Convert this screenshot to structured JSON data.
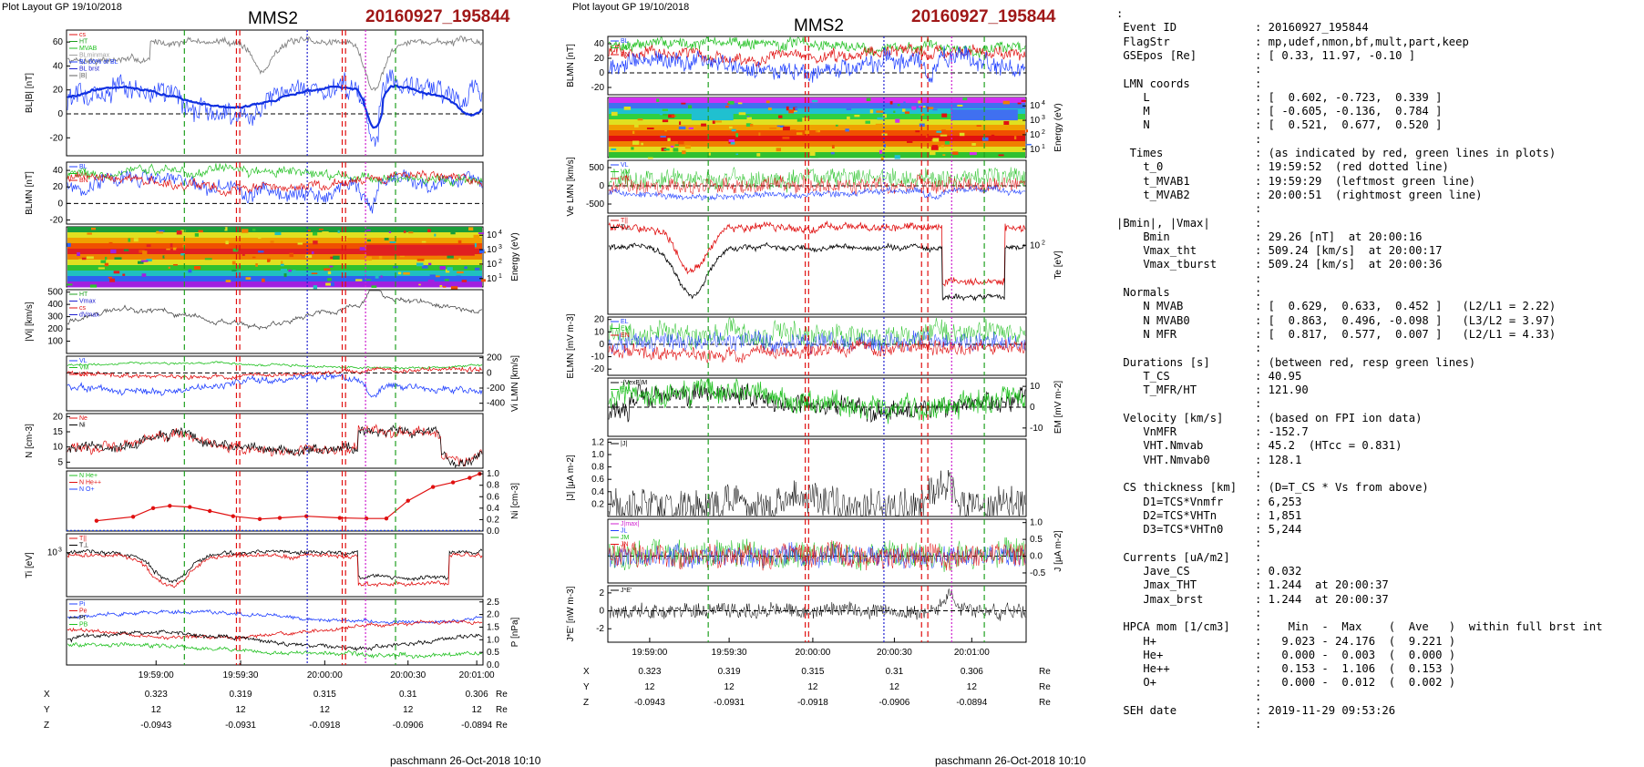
{
  "figure_left": {
    "header": "Plot Layout GP 19/10/2018",
    "spacecraft": "MMS2",
    "event": "20160927_195844",
    "footer": "paschmann 26-Oct-2018 10:10",
    "panels": [
      {
        "id": "B",
        "ylabel": "BL|B| [nT]",
        "yticks": [
          "60",
          "40",
          "20",
          "0",
          "-20"
        ],
        "yrange": [
          -35,
          70
        ],
        "legend": [
          "cs",
          "HT",
          "MVAB",
          "BLminmax",
          "BL 50% of BL",
          "BL brst",
          "|B|"
        ]
      },
      {
        "id": "BLMN",
        "ylabel": "BLMN [nT]",
        "yticks": [
          "40",
          "20",
          "0",
          "-20"
        ],
        "yrange": [
          -25,
          50
        ],
        "legend": [
          "BL",
          "BM",
          "BN"
        ]
      },
      {
        "id": "spec_ion",
        "ylabel": "Energy (eV)",
        "yticks": [
          "10^4",
          "10^3",
          "10^2",
          "10^1"
        ],
        "legend": []
      },
      {
        "id": "V",
        "ylabel": "|Vi| [km/s]",
        "yticks": [
          "500",
          "400",
          "300",
          "200",
          "100"
        ],
        "yrange": [
          0,
          520
        ],
        "legend": [
          "HT",
          "Vmax",
          "cs",
          "dVmax"
        ]
      },
      {
        "id": "VLMN",
        "ylabel": "Vi LMN [km/s]",
        "yticks": [
          "200",
          "0",
          "-200",
          "-400"
        ],
        "yrange": [
          -500,
          220
        ],
        "legend": [
          "VL",
          "VM",
          "VN"
        ]
      },
      {
        "id": "N",
        "ylabel": "N [cm-3]",
        "yticks": [
          "20",
          "15",
          "10",
          "5"
        ],
        "yrange": [
          3,
          21
        ],
        "legend": [
          "Ne",
          "Ni"
        ]
      },
      {
        "id": "HPCA",
        "ylabel": "Ni [cm-3]",
        "yticks": [
          "1.0",
          "0.8",
          "0.6",
          "0.4",
          "0.2",
          "0.0"
        ],
        "yrange": [
          0,
          1.05
        ],
        "legend": [
          "N He+",
          "N He++",
          "N O+"
        ]
      },
      {
        "id": "T",
        "ylabel": "Ti [eV]",
        "yticks": [
          "10^3"
        ],
        "legend": [
          "T||",
          "T⊥"
        ]
      },
      {
        "id": "P",
        "ylabel": "P [nPa]",
        "yticks": [
          "2.5",
          "2.0",
          "1.5",
          "1.0",
          "0.5",
          "0.0"
        ],
        "yrange": [
          0,
          2.6
        ],
        "legend": [
          "Pi",
          "Pe",
          "Pt",
          "PB"
        ]
      }
    ],
    "time_ticks": [
      "19:59:00",
      "19:59:30",
      "20:00:00",
      "20:00:30",
      "20:01:00"
    ],
    "eph": {
      "rows": [
        "X",
        "Y",
        "Z"
      ],
      "values": [
        [
          "0.323",
          "0.319",
          "0.315",
          "0.31",
          "0.306"
        ],
        [
          "12",
          "12",
          "12",
          "12",
          "12"
        ],
        [
          "-0.0943",
          "-0.0931",
          "-0.0918",
          "-0.0906",
          "-0.0894"
        ]
      ],
      "unit": "Re"
    },
    "hpca_points": [
      [
        18,
        0.18
      ],
      [
        40,
        0.25
      ],
      [
        52,
        0.4
      ],
      [
        62,
        0.44
      ],
      [
        74,
        0.42
      ],
      [
        86,
        0.35
      ],
      [
        100,
        0.26
      ],
      [
        116,
        0.21
      ],
      [
        128,
        0.23
      ],
      [
        144,
        0.26
      ],
      [
        164,
        0.23
      ],
      [
        180,
        0.22
      ],
      [
        192,
        0.22
      ],
      [
        205,
        0.53
      ],
      [
        220,
        0.77
      ],
      [
        232,
        0.85
      ],
      [
        242,
        0.93
      ],
      [
        248,
        1.0
      ]
    ]
  },
  "figure_right": {
    "header": "Plot layout GP 19/10/2018",
    "spacecraft": "MMS2",
    "event": "20160927_195844",
    "footer": "paschmann 26-Oct-2018 10:10",
    "panels": [
      {
        "id": "B",
        "ylabel": "BLMN [nT]",
        "yticks": [
          "40",
          "20",
          "0",
          "-20"
        ],
        "yrange": [
          -30,
          50
        ],
        "legend": [
          "BL",
          "BM",
          "BN"
        ]
      },
      {
        "id": "spec_e",
        "ylabel": "Energy (eV)",
        "yticks": [
          "10^4",
          "10^3",
          "10^2",
          "10^1"
        ],
        "legend": []
      },
      {
        "id": "Ve",
        "ylabel": "Ve LMN [km/s]",
        "yticks": [
          "500",
          "0",
          "-500"
        ],
        "yrange": [
          -750,
          700
        ],
        "legend": [
          "VL",
          "VM",
          "VN"
        ]
      },
      {
        "id": "Te",
        "ylabel": "Te [eV]",
        "yticks": [
          "10^2"
        ],
        "legend": [
          "T||",
          "T⊥"
        ]
      },
      {
        "id": "E",
        "ylabel": "ELMN [mV m-3]",
        "yticks": [
          "20",
          "10",
          "0",
          "-10",
          "-20"
        ],
        "yrange": [
          -25,
          22
        ],
        "legend": [
          "EL",
          "EM",
          "EN"
        ]
      },
      {
        "id": "EM",
        "ylabel": "EM [mV m-2]",
        "yticks": [
          "10",
          "0",
          "-10"
        ],
        "yrange": [
          -14,
          14
        ],
        "legend": [
          "-(VexB)M",
          "EM"
        ]
      },
      {
        "id": "J",
        "ylabel": "|J| [μA m-2]",
        "yticks": [
          "1.2",
          "1.0",
          "0.8",
          "0.6",
          "0.4",
          "0.2"
        ],
        "yrange": [
          0,
          1.25
        ],
        "legend": [
          "|J|"
        ]
      },
      {
        "id": "JLMN",
        "ylabel": "J [μA m-2]",
        "yticks": [
          "1.0",
          "0.5",
          "0.0",
          "-0.5"
        ],
        "yrange": [
          -0.8,
          1.1
        ],
        "legend": [
          "J|max|",
          "JL",
          "JM",
          "JN"
        ]
      },
      {
        "id": "JE",
        "ylabel": "J*E' [nW m-3]",
        "yticks": [
          "2",
          "0",
          "-2"
        ],
        "yrange": [
          -3.5,
          2.8
        ],
        "legend": [
          "J*E'"
        ]
      }
    ],
    "time_ticks": [
      "19:59:00",
      "19:59:30",
      "20:00:00",
      "20:00:30",
      "20:01:00"
    ],
    "eph": {
      "rows": [
        "X",
        "Y",
        "Z"
      ],
      "values": [
        [
          "0.323",
          "0.319",
          "0.315",
          "0.31",
          "0.306"
        ],
        [
          "12",
          "12",
          "12",
          "12",
          "12"
        ],
        [
          "-0.0943",
          "-0.0931",
          "-0.0918",
          "-0.0906",
          "-0.0894"
        ]
      ],
      "unit": "Re"
    }
  },
  "chart_data": [
    {
      "type": "line",
      "title": "MMS2 20160927_195844",
      "x": [
        "19:59:00",
        "19:59:30",
        "20:00:00",
        "20:00:30",
        "20:01:00"
      ],
      "ylabel": "BL|B| [nT]",
      "ylim": [
        -35,
        70
      ]
    },
    {
      "type": "scatter",
      "title": "HPCA",
      "ylabel": "Ni [cm-3]",
      "ylim": [
        0,
        1.05
      ],
      "series": [
        {
          "name": "N He++",
          "values": [
            0.18,
            0.25,
            0.4,
            0.44,
            0.42,
            0.35,
            0.26,
            0.21,
            0.23,
            0.26,
            0.23,
            0.22,
            0.22,
            0.53,
            0.77,
            0.85,
            0.93,
            1.0
          ]
        }
      ]
    },
    {
      "type": "line",
      "title": "MMS2 20160927_195844",
      "x": [
        "19:59:00",
        "19:59:30",
        "20:00:00",
        "20:00:30",
        "20:01:00"
      ],
      "ylabel": "|J| [μA m-2]",
      "ylim": [
        0,
        1.25
      ]
    }
  ],
  "info": {
    "lines": [
      [
        ":",
        ""
      ],
      [
        " Event ID",
        ": 20160927_195844"
      ],
      [
        " FlagStr",
        ": mp,udef,nmon,bf,mult,part,keep"
      ],
      [
        " GSEpos [Re]",
        ": [ 0.33, 11.97, -0.10 ]"
      ],
      [
        "",
        ":"
      ],
      [
        " LMN coords",
        ":"
      ],
      [
        "    L",
        ": [  0.602, -0.723,  0.339 ]"
      ],
      [
        "    M",
        ": [ -0.605, -0.136,  0.784 ]"
      ],
      [
        "    N",
        ": [  0.521,  0.677,  0.520 ]"
      ],
      [
        "",
        ":"
      ],
      [
        "  Times",
        ": (as indicated by red, green lines in plots)"
      ],
      [
        "    t_0",
        ": 19:59:52  (red dotted line)"
      ],
      [
        "    t_MVAB1",
        ": 19:59:29  (leftmost green line)"
      ],
      [
        "    t_MVAB2",
        ": 20:00:51  (rightmost green line)"
      ],
      [
        "",
        ":"
      ],
      [
        "|Bmin|, |Vmax|",
        ":"
      ],
      [
        "    Bmin",
        ": 29.26 [nT]  at 20:00:16"
      ],
      [
        "    Vmax_tht",
        ": 509.24 [km/s]  at 20:00:17"
      ],
      [
        "    Vmax_tburst",
        ": 509.24 [km/s]  at 20:00:36"
      ],
      [
        "",
        ":"
      ],
      [
        " Normals",
        ":"
      ],
      [
        "    N MVAB",
        ": [  0.629,  0.633,  0.452 ]   (L2/L1 = 2.22)"
      ],
      [
        "    N MVAB0",
        ": [  0.863,  0.496, -0.098 ]   (L3/L2 = 3.97)"
      ],
      [
        "    N MFR",
        ": [  0.817,  0.577,  0.007 ]   (L2/L1 = 4.33)"
      ],
      [
        "",
        ":"
      ],
      [
        " Durations [s]",
        ": (between red, resp green lines)"
      ],
      [
        "    T_CS",
        ": 40.95"
      ],
      [
        "    T_MFR/HT",
        ": 121.90"
      ],
      [
        "",
        ":"
      ],
      [
        " Velocity [km/s]",
        ": (based on FPI ion data)"
      ],
      [
        "    VnMFR",
        ": -152.7"
      ],
      [
        "    VHT.Nmvab",
        ": 45.2  (HTcc = 0.831)"
      ],
      [
        "    VHT.Nmvab0",
        ": 128.1"
      ],
      [
        "",
        ":"
      ],
      [
        " CS thickness [km]",
        ": (D=T_CS * Vs from above)"
      ],
      [
        "    D1=TCS*Vnmfr",
        ": 6,253"
      ],
      [
        "    D2=TCS*VHTn",
        ": 1,851"
      ],
      [
        "    D3=TCS*VHTn0",
        ": 5,244"
      ],
      [
        "",
        ":"
      ],
      [
        " Currents [uA/m2]",
        ":"
      ],
      [
        "    Jave_CS",
        ": 0.032"
      ],
      [
        "    Jmax_THT",
        ": 1.244  at 20:00:37"
      ],
      [
        "    Jmax_brst",
        ": 1.244  at 20:00:37"
      ],
      [
        "",
        ":"
      ],
      [
        " HPCA mom [1/cm3]",
        ":    Min  -  Max    (  Ave   )  within full brst int"
      ],
      [
        "    H+",
        ":   9.023 - 24.176  (  9.221 )"
      ],
      [
        "    He+",
        ":   0.000 -  0.003  (  0.000 )"
      ],
      [
        "    He++",
        ":   0.153 -  1.106  (  0.153 )"
      ],
      [
        "    O+",
        ":   0.000 -  0.012  (  0.002 )"
      ],
      [
        "",
        ":"
      ],
      [
        " SEH date",
        ": 2019-11-29 09:53:26"
      ],
      [
        "",
        ":"
      ]
    ]
  }
}
